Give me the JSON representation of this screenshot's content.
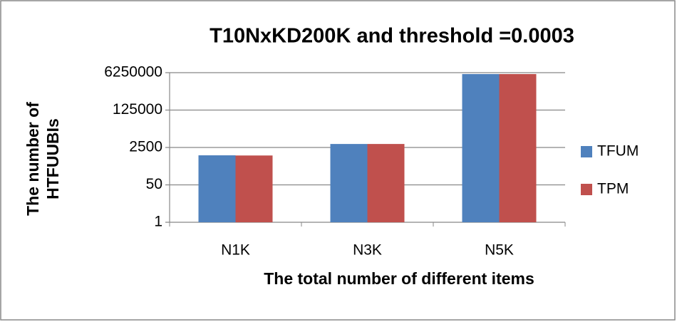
{
  "chart_data": {
    "type": "bar",
    "title": "T10NxKD200K and threshold =0.0003",
    "x_label": "The total number of different items",
    "y_label": "The number of HTFUUBIs",
    "categories": [
      "N1K",
      "N3K",
      "N5K"
    ],
    "series": [
      {
        "name": "TFUM",
        "color": "#4f81bd",
        "values": [
          1100,
          3600,
          5400000
        ]
      },
      {
        "name": "TPM",
        "color": "#c0504d",
        "values": [
          1080,
          3600,
          5400000
        ]
      }
    ],
    "log_scale": true,
    "ylim": [
      1,
      6250000
    ],
    "yticks": [
      1,
      50,
      2500,
      125000,
      6250000
    ],
    "grid": true,
    "legend": "right"
  }
}
